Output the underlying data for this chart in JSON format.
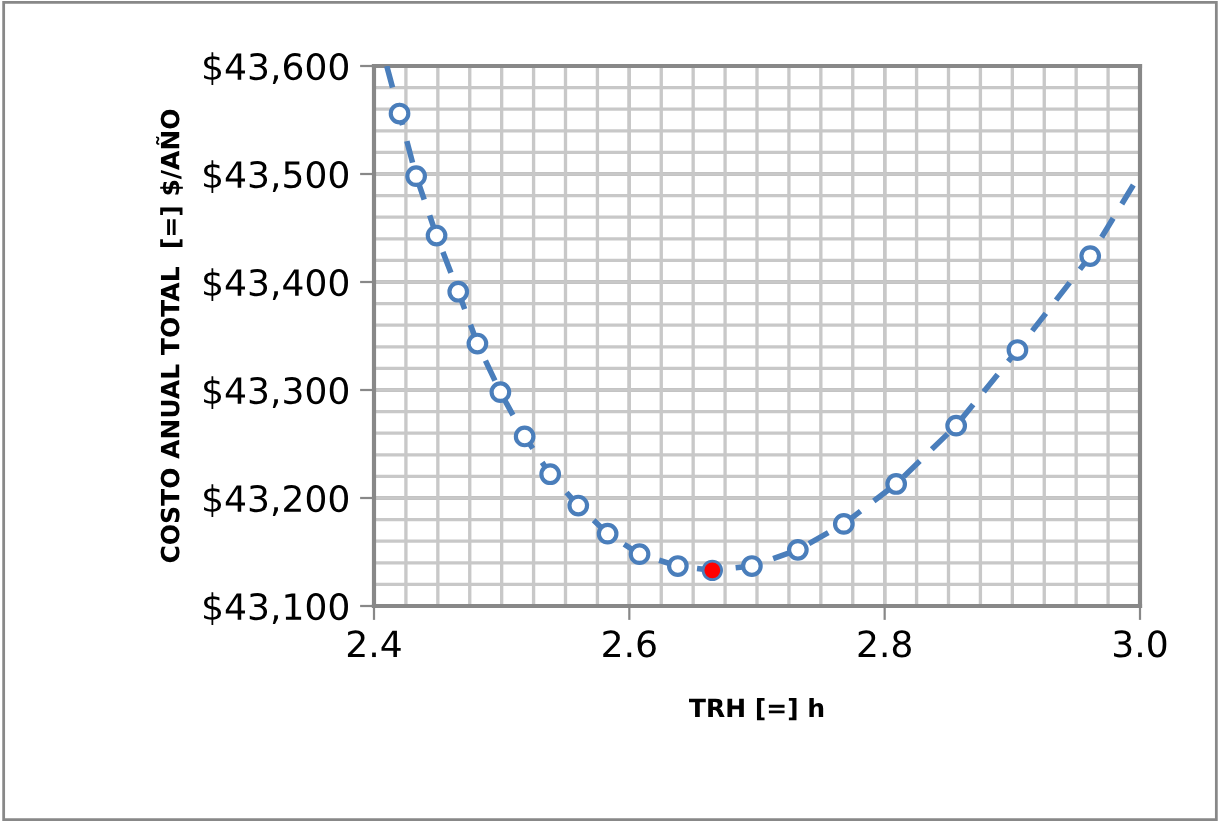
{
  "chart_data": {
    "type": "line",
    "xlabel": "TRH [=] h",
    "ylabel": "COSTO ANUAL TOTAL  [=] $/AÑO",
    "xlim": [
      2.4,
      3.0
    ],
    "xticks": [
      2.4,
      {
        "value": 2.425,
        "label": null
      },
      {
        "value": 2.45,
        "label": null
      },
      {
        "value": 2.475,
        "label": null
      },
      {
        "value": 2.5,
        "label": null
      },
      {
        "value": 2.525,
        "label": null
      },
      {
        "value": 2.55,
        "label": null
      },
      {
        "value": 2.575,
        "label": null
      },
      2.6,
      {
        "value": 2.625,
        "label": null
      },
      {
        "value": 2.65,
        "label": null
      },
      {
        "value": 2.675,
        "label": null
      },
      {
        "value": 2.7,
        "label": null
      },
      {
        "value": 2.725,
        "label": null
      },
      {
        "value": 2.75,
        "label": null
      },
      {
        "value": 2.775,
        "label": null
      },
      2.8,
      {
        "value": 2.825,
        "label": null
      },
      {
        "value": 2.85,
        "label": null
      },
      {
        "value": 2.875,
        "label": null
      },
      {
        "value": 2.9,
        "label": null
      },
      {
        "value": 2.925,
        "label": null
      },
      {
        "value": 2.95,
        "label": null
      },
      {
        "value": 2.975,
        "label": null
      },
      {
        "value": 3.0,
        "label": "3.0"
      }
    ],
    "ylim": [
      43100,
      43600
    ],
    "yticks": [
      {
        "value": 43100,
        "label": "$43,100"
      },
      {
        "value": 43120,
        "label": null
      },
      {
        "value": 43140,
        "label": null
      },
      {
        "value": 43160,
        "label": null
      },
      {
        "value": 43180,
        "label": null
      },
      {
        "value": 43200,
        "label": "$43,200"
      },
      {
        "value": 43220,
        "label": null
      },
      {
        "value": 43240,
        "label": null
      },
      {
        "value": 43260,
        "label": null
      },
      {
        "value": 43280,
        "label": null
      },
      {
        "value": 43300,
        "label": "$43,300"
      },
      {
        "value": 43320,
        "label": null
      },
      {
        "value": 43340,
        "label": null
      },
      {
        "value": 43360,
        "label": null
      },
      {
        "value": 43380,
        "label": null
      },
      {
        "value": 43400,
        "label": "$43,400"
      },
      {
        "value": 43420,
        "label": null
      },
      {
        "value": 43440,
        "label": null
      },
      {
        "value": 43460,
        "label": null
      },
      {
        "value": 43480,
        "label": null
      },
      {
        "value": 43500,
        "label": "$43,500"
      },
      {
        "value": 43520,
        "label": null
      },
      {
        "value": 43540,
        "label": null
      },
      {
        "value": 43560,
        "label": null
      },
      {
        "value": 43580,
        "label": null
      },
      {
        "value": 43600,
        "label": "$43,600"
      }
    ],
    "grid": true,
    "series": [
      {
        "color": "#4a7ebb",
        "line_style": "dashed",
        "marker": "none",
        "x": [
          2.41,
          2.42,
          2.433,
          2.449,
          2.466,
          2.481,
          2.499,
          2.518,
          2.538,
          2.56,
          2.583,
          2.608,
          2.638,
          2.665,
          2.696,
          2.732,
          2.768,
          2.809,
          2.856,
          2.904,
          2.961,
          3.0
        ],
        "values": [
          43600,
          43556,
          43498,
          43443,
          43391,
          43343,
          43298,
          43257,
          43222,
          43193,
          43167,
          43148,
          43137,
          43133,
          43137,
          43152,
          43176,
          43213,
          43267,
          43337,
          43424,
          43500
        ]
      },
      {
        "type": "scatter",
        "color": "#4a7ebb",
        "marker": "circle",
        "x": [
          2.42,
          2.433,
          2.449,
          2.466,
          2.481,
          2.499,
          2.518,
          2.538,
          2.56,
          2.583,
          2.608,
          2.638,
          2.696,
          2.732,
          2.768,
          2.809,
          2.856,
          2.904,
          2.961
        ],
        "values": [
          43556,
          43498,
          43443,
          43391,
          43343,
          43298,
          43257,
          43222,
          43193,
          43167,
          43148,
          43137,
          43137,
          43152,
          43176,
          43213,
          43267,
          43337,
          43424
        ]
      },
      {
        "type": "scatter",
        "color": "#ff0000",
        "marker": "circle",
        "x": [
          2.665
        ],
        "values": [
          43133
        ]
      }
    ]
  }
}
